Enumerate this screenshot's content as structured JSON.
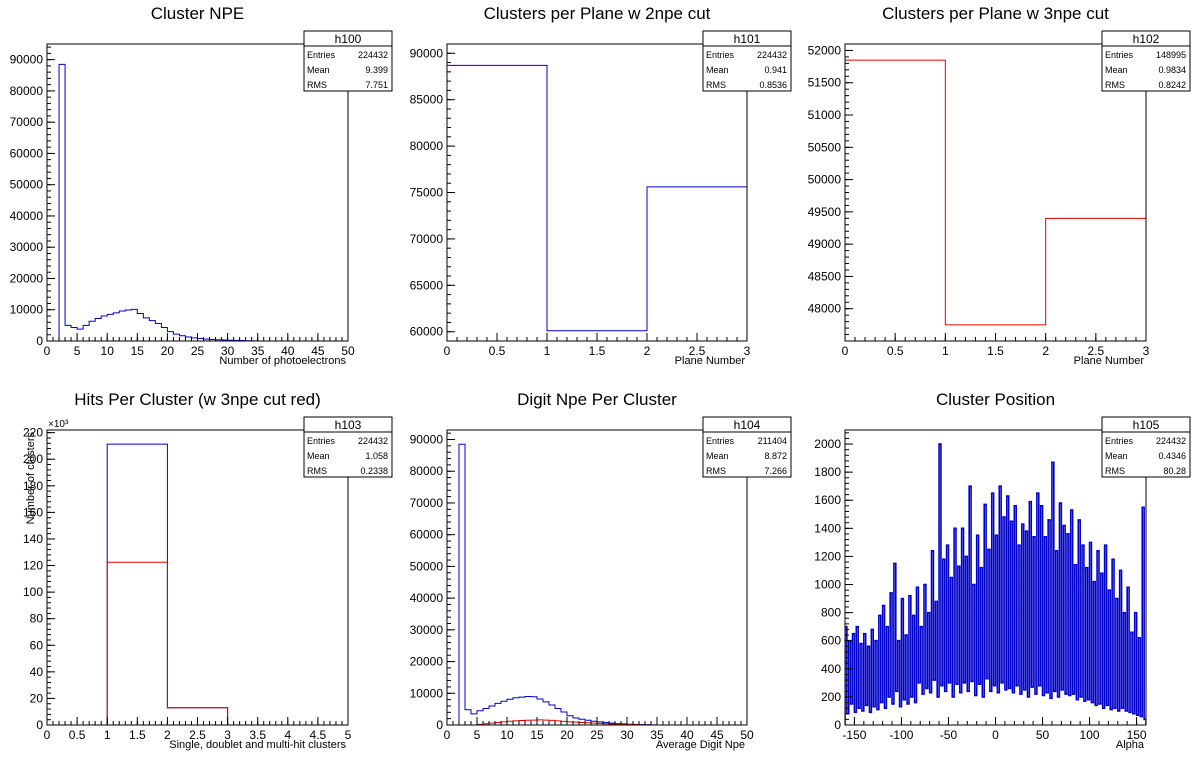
{
  "chart_data": [
    {
      "type": "bar",
      "hist_name": "h100",
      "title": "Cluster NPE",
      "xlabel": "Number of photoelectrons",
      "ylabel": "",
      "xlim": [
        0,
        50
      ],
      "ylim": [
        0,
        95000
      ],
      "xticks": [
        0,
        5,
        10,
        15,
        20,
        25,
        30,
        35,
        40,
        45,
        50
      ],
      "yticks": [
        0,
        10000,
        20000,
        30000,
        40000,
        50000,
        60000,
        70000,
        80000,
        90000
      ],
      "stats": {
        "Entries": "224432",
        "Mean": "9.399",
        "RMS": "7.751"
      },
      "series": [
        {
          "color": "#0000cc",
          "bin_edges": [
            0,
            1,
            2,
            3,
            4,
            5,
            6,
            7,
            8,
            9,
            10,
            11,
            12,
            13,
            14,
            15,
            16,
            17,
            18,
            19,
            20,
            21,
            22,
            23,
            24,
            25,
            26,
            27,
            28,
            29,
            30,
            31,
            32,
            33,
            34,
            35,
            36,
            37,
            38,
            39,
            40,
            41,
            42,
            43,
            44,
            45,
            46,
            47,
            48,
            49,
            50
          ],
          "values": [
            0,
            0,
            88500,
            5000,
            4300,
            3800,
            5000,
            6300,
            7200,
            8000,
            8500,
            9000,
            9600,
            9900,
            10100,
            8800,
            7400,
            6500,
            5600,
            4300,
            3000,
            2200,
            1700,
            1300,
            1000,
            800,
            600,
            500,
            400,
            300,
            250,
            200,
            150,
            100,
            50,
            0,
            0,
            0,
            0,
            0,
            0,
            0,
            0,
            0,
            0,
            0,
            0,
            0,
            0,
            0
          ]
        }
      ]
    },
    {
      "type": "bar",
      "hist_name": "h101",
      "title": "Clusters per Plane w 2npe cut",
      "xlabel": "Plane Number",
      "ylabel": "",
      "xlim": [
        0,
        3
      ],
      "ylim": [
        59000,
        91000
      ],
      "xticks": [
        0,
        0.5,
        1,
        1.5,
        2,
        2.5,
        3
      ],
      "yticks": [
        60000,
        65000,
        70000,
        75000,
        80000,
        85000,
        90000
      ],
      "stats": {
        "Entries": "224432",
        "Mean": "0.941",
        "RMS": "0.8536"
      },
      "series": [
        {
          "color": "#0000cc",
          "bin_edges": [
            0,
            1,
            2,
            3
          ],
          "values": [
            88700,
            60100,
            75600
          ]
        }
      ]
    },
    {
      "type": "bar",
      "hist_name": "h102",
      "title": "Clusters per Plane w 3npe cut",
      "xlabel": "Plane Number",
      "ylabel": "",
      "xlim": [
        0,
        3
      ],
      "ylim": [
        47500,
        52100
      ],
      "xticks": [
        0,
        0.5,
        1,
        1.5,
        2,
        2.5,
        3
      ],
      "yticks": [
        48000,
        48500,
        49000,
        49500,
        50000,
        50500,
        51000,
        51500,
        52000
      ],
      "stats": {
        "Entries": "148995",
        "Mean": "0.9834",
        "RMS": "0.8242"
      },
      "series": [
        {
          "color": "#dd0000",
          "bin_edges": [
            0,
            1,
            2,
            3
          ],
          "values": [
            51850,
            47750,
            49400
          ]
        }
      ]
    },
    {
      "type": "bar",
      "hist_name": "h103",
      "title": "Hits Per Cluster (w 3npe cut red)",
      "xlabel": "Single, doublet and multi-hit clusters",
      "ylabel": "Number of clusters",
      "multiplier": "×10³",
      "xlim": [
        0,
        5
      ],
      "ylim": [
        0,
        222
      ],
      "xticks": [
        0,
        0.5,
        1,
        1.5,
        2,
        2.5,
        3,
        3.5,
        4,
        4.5,
        5
      ],
      "yticks": [
        0,
        20,
        40,
        60,
        80,
        100,
        120,
        140,
        160,
        180,
        200,
        220
      ],
      "stats": {
        "Entries": "224432",
        "Mean": "1.058",
        "RMS": "0.2338"
      },
      "series": [
        {
          "color": "#0000cc",
          "bin_edges": [
            0,
            1,
            2,
            3,
            4,
            5
          ],
          "values": [
            0,
            211.4,
            13,
            0,
            0
          ]
        },
        {
          "color": "#dd0000",
          "bin_edges": [
            0,
            1,
            2,
            3,
            4,
            5
          ],
          "values": [
            0,
            122.5,
            13,
            0,
            0
          ]
        }
      ]
    },
    {
      "type": "bar",
      "hist_name": "h104",
      "title": "Digit Npe Per Cluster",
      "xlabel": "Average Digit Npe",
      "ylabel": "",
      "xlim": [
        0,
        50
      ],
      "ylim": [
        0,
        93000
      ],
      "xticks": [
        0,
        5,
        10,
        15,
        20,
        25,
        30,
        35,
        40,
        45,
        50
      ],
      "yticks": [
        0,
        10000,
        20000,
        30000,
        40000,
        50000,
        60000,
        70000,
        80000,
        90000
      ],
      "stats": {
        "Entries": "211404",
        "Mean": "8.872",
        "RMS": "7.266"
      },
      "series": [
        {
          "color": "#0000cc",
          "bin_edges": [
            0,
            1,
            2,
            3,
            4,
            5,
            6,
            7,
            8,
            9,
            10,
            11,
            12,
            13,
            14,
            15,
            16,
            17,
            18,
            19,
            20,
            21,
            22,
            23,
            24,
            25,
            26,
            27,
            28,
            29,
            30,
            31,
            32,
            33,
            34,
            35,
            36,
            37,
            38,
            39,
            40,
            41,
            42,
            43,
            44,
            45,
            46,
            47,
            48,
            49,
            50
          ],
          "values": [
            0,
            0,
            88500,
            4800,
            3500,
            4500,
            5200,
            6000,
            6800,
            7500,
            8100,
            8600,
            8800,
            9000,
            8900,
            8200,
            7300,
            6300,
            5200,
            4100,
            2900,
            2200,
            1800,
            1500,
            1200,
            1000,
            800,
            600,
            450,
            350,
            250,
            180,
            120,
            80,
            40,
            20,
            0,
            0,
            0,
            0,
            0,
            0,
            0,
            0,
            0,
            0,
            0,
            0,
            0,
            0
          ]
        },
        {
          "color": "#dd0000",
          "bin_edges": [
            0,
            1,
            2,
            3,
            4,
            5,
            6,
            7,
            8,
            9,
            10,
            11,
            12,
            13,
            14,
            15,
            16,
            17,
            18,
            19,
            20,
            21,
            22,
            23,
            24,
            25,
            26,
            27,
            28,
            29,
            30,
            31,
            32,
            33,
            34,
            35,
            36,
            37,
            38,
            39,
            40,
            41,
            42,
            43,
            44,
            45,
            46,
            47,
            48,
            49,
            50
          ],
          "values": [
            0,
            0,
            0,
            0,
            0,
            200,
            400,
            600,
            800,
            1000,
            1200,
            1300,
            1400,
            1500,
            1550,
            1600,
            1550,
            1450,
            1300,
            1150,
            1000,
            900,
            800,
            700,
            600,
            500,
            400,
            320,
            250,
            200,
            150,
            100,
            70,
            40,
            20,
            10,
            0,
            0,
            0,
            0,
            0,
            0,
            0,
            0,
            0,
            0,
            0,
            0,
            0,
            0
          ]
        }
      ]
    },
    {
      "type": "bar",
      "hist_name": "h105",
      "title": "Cluster Position",
      "xlabel": "Alpha",
      "ylabel": "",
      "xlim": [
        -160,
        160
      ],
      "ylim": [
        0,
        2100
      ],
      "xticks": [
        -150,
        -100,
        -50,
        0,
        50,
        100,
        150
      ],
      "yticks": [
        0,
        200,
        400,
        600,
        800,
        1000,
        1200,
        1400,
        1600,
        1800,
        2000
      ],
      "stats": {
        "Entries": "224432",
        "Mean": "0.4346",
        "RMS": "80.28"
      },
      "series": [
        {
          "color": "#0000cc",
          "x_start": -160,
          "bin_width": 2,
          "values": [
            700,
            80,
            600,
            150,
            650,
            90,
            700,
            120,
            580,
            100,
            650,
            140,
            560,
            90,
            680,
            130,
            600,
            110,
            780,
            160,
            850,
            120,
            700,
            200,
            940,
            150,
            1150,
            240,
            600,
            130,
            900,
            180,
            640,
            150,
            920,
            200,
            780,
            160,
            980,
            300,
            700,
            220,
            1000,
            260,
            800,
            230,
            1240,
            320,
            880,
            200,
            2000,
            280,
            1180,
            240,
            1280,
            300,
            1050,
            200,
            1400,
            290,
            1130,
            230,
            1400,
            300,
            1200,
            240,
            1700,
            310,
            1000,
            210,
            1350,
            290,
            1120,
            200,
            1570,
            330,
            1250,
            240,
            1650,
            280,
            1350,
            230,
            1700,
            300,
            1480,
            250,
            1630,
            260,
            1450,
            230,
            1560,
            280,
            1280,
            220,
            1430,
            250,
            1380,
            200,
            1590,
            270,
            1340,
            220,
            1650,
            280,
            1560,
            210,
            1340,
            230,
            1460,
            190,
            1870,
            240,
            1240,
            200,
            1580,
            250,
            1420,
            220,
            1360,
            210,
            1530,
            220,
            1140,
            180,
            1460,
            200,
            1280,
            170,
            1120,
            180,
            1300,
            160,
            1020,
            140,
            1240,
            150,
            1080,
            120,
            1280,
            140,
            960,
            110,
            1180,
            120,
            900,
            100,
            1100,
            120,
            800,
            100,
            980,
            90,
            660,
            80,
            800,
            70,
            620,
            60,
            1550,
            40
          ]
        }
      ]
    }
  ]
}
